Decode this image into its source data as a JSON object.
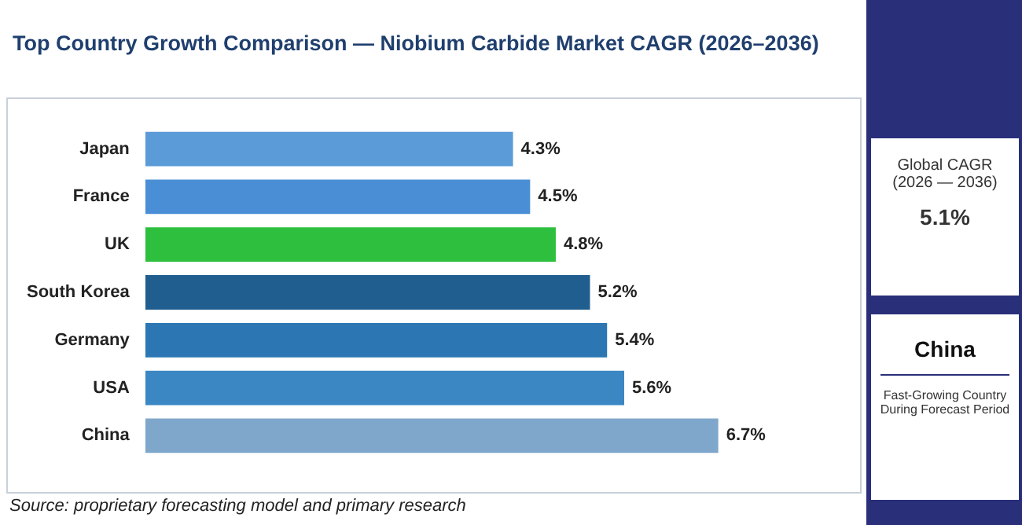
{
  "chart_data": [
    {
      "type": "bar",
      "title": "Top Country Growth Comparison — Niobium Carbide Market CAGR (2026–2036)",
      "orientation": "horizontal",
      "categories": [
        "Japan",
        "France",
        "UK",
        "South Korea",
        "Germany",
        "USA",
        "China"
      ],
      "values": [
        4.3,
        4.5,
        4.8,
        5.2,
        5.4,
        5.6,
        6.7
      ],
      "value_labels": [
        "4.3%",
        "4.5%",
        "4.8%",
        "5.2%",
        "5.4%",
        "5.6%",
        "6.7%"
      ],
      "colors": [
        "#5b9bd8",
        "#4a8fd6",
        "#2fbf3e",
        "#1f5e8f",
        "#2c77b3",
        "#3a87c4",
        "#7fa7cb"
      ],
      "grid": false,
      "legend": false,
      "tick_labels": "y",
      "annotations": [
        "Source: proprietary forecasting model and primary research"
      ]
    },
    {
      "type": "other",
      "annotations": [
        "Global CAGR",
        "(2026 — 2036)",
        "5.1%",
        "China",
        "Fast-Growing Country",
        "During Forecast Period"
      ]
    }
  ]
}
